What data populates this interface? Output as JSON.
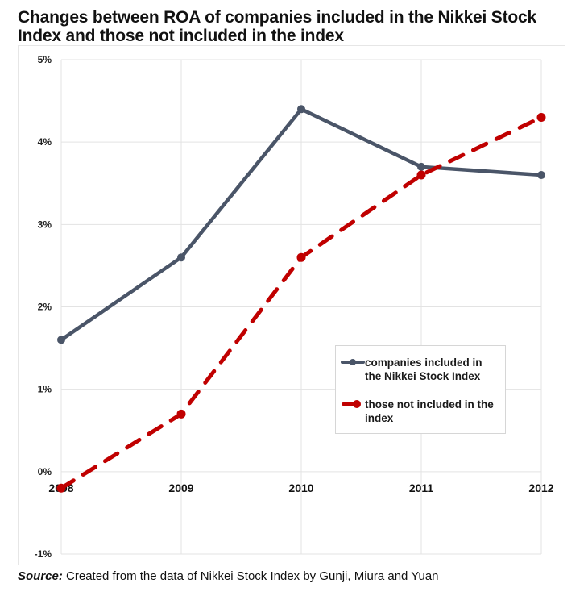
{
  "chart_data": {
    "type": "line",
    "title": "Changes between ROA of companies included in the Nikkei Stock Index and those not included in the index",
    "xlabel": "",
    "ylabel": "",
    "categories": [
      "2008",
      "2009",
      "2010",
      "2011",
      "2012"
    ],
    "ylim": [
      -1,
      5
    ],
    "yticks": [
      -1,
      0,
      1,
      2,
      3,
      4,
      5
    ],
    "ytick_labels": [
      "-1%",
      "0%",
      "1%",
      "2%",
      "3%",
      "4%",
      "5%"
    ],
    "grid": true,
    "legend_position": "center-right",
    "series": [
      {
        "name": "companies included in the Nikkei Stock Index",
        "values": [
          1.6,
          2.6,
          4.4,
          3.7,
          3.6
        ],
        "color": "#4a5568",
        "style": "solid",
        "marker": "circle"
      },
      {
        "name": "those not included in the index",
        "values": [
          -0.2,
          0.7,
          2.6,
          3.6,
          4.3
        ],
        "color": "#c00000",
        "style": "dashed",
        "marker": "circle"
      }
    ]
  },
  "legend": {
    "items": [
      {
        "line1": "companies included in",
        "line2": "the Nikkei Stock Index"
      },
      {
        "line1": "those not included in the",
        "line2": "index"
      }
    ]
  },
  "source": {
    "label": "Source:",
    "text": " Created from the data of Nikkei Stock Index by Gunji, Miura and Yuan"
  }
}
